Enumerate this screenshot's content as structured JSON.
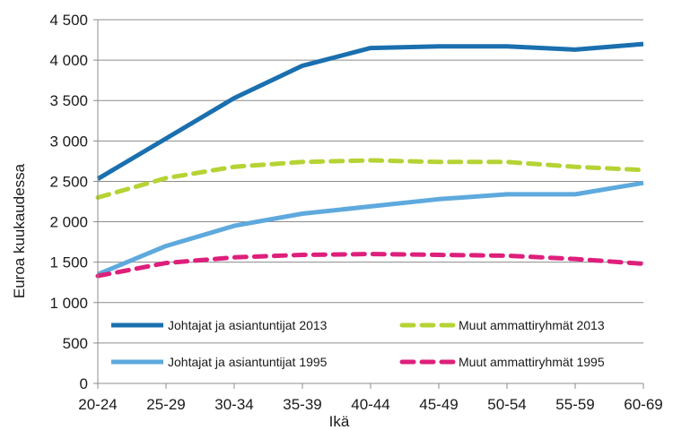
{
  "chart_data": {
    "type": "line",
    "title": "",
    "xlabel": "Ikä",
    "ylabel": "Euroa kuukaudessa",
    "categories": [
      "20-24",
      "25-29",
      "30-34",
      "35-39",
      "40-44",
      "45-49",
      "50-54",
      "55-59",
      "60-69"
    ],
    "ylim": [
      0,
      4500
    ],
    "yticks": [
      0,
      500,
      1000,
      1500,
      2000,
      2500,
      3000,
      3500,
      4000,
      4500
    ],
    "ytick_labels": [
      "0",
      "500",
      "1 000",
      "1 500",
      "2 000",
      "2 500",
      "3 000",
      "3 500",
      "4 000",
      "4 500"
    ],
    "grid": "horizontal",
    "legend_position": "bottom-inside",
    "series": [
      {
        "name": "Johtajat ja asiantuntijat 2013",
        "values": [
          2530,
          3030,
          3530,
          3930,
          4150,
          4170,
          4170,
          4130,
          4200
        ],
        "color": "#1a6faf",
        "dash": "solid"
      },
      {
        "name": "Muut ammattiryhmät 2013",
        "values": [
          2300,
          2540,
          2680,
          2740,
          2760,
          2740,
          2740,
          2680,
          2640
        ],
        "color": "#b5d334",
        "dash": "dashed"
      },
      {
        "name": "Johtajat ja asiantuntijat 1995",
        "values": [
          1350,
          1700,
          1950,
          2100,
          2190,
          2280,
          2340,
          2340,
          2480
        ],
        "color": "#5ea9dd",
        "dash": "solid"
      },
      {
        "name": "Muut ammattiryhmät 1995",
        "values": [
          1330,
          1490,
          1560,
          1590,
          1600,
          1590,
          1580,
          1540,
          1480
        ],
        "color": "#de1f7b",
        "dash": "dashed"
      }
    ]
  }
}
